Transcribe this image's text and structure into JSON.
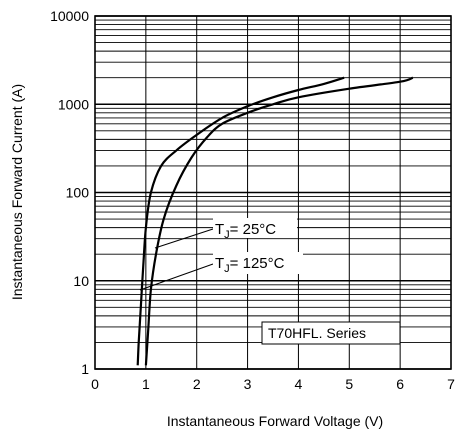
{
  "chart_data": {
    "type": "line",
    "title": "",
    "xlabel": "Instantaneous Forward Voltage (V)",
    "ylabel": "Instantaneous Forward Current (A)",
    "x_scale": "linear",
    "y_scale": "log",
    "xlim": [
      0,
      7
    ],
    "ylim": [
      1,
      10000
    ],
    "x_ticks": [
      "0",
      "1",
      "2",
      "3",
      "4",
      "5",
      "6",
      "7"
    ],
    "y_ticks": [
      "1",
      "10",
      "100",
      "1000",
      "10000"
    ],
    "grid": true,
    "series": [
      {
        "name": "TJ = 25°C",
        "points": [
          [
            0.84,
            1.1
          ],
          [
            0.86,
            2
          ],
          [
            0.9,
            5
          ],
          [
            0.95,
            15
          ],
          [
            1.0,
            40
          ],
          [
            1.1,
            100
          ],
          [
            1.3,
            200
          ],
          [
            1.6,
            300
          ],
          [
            2.0,
            450
          ],
          [
            2.5,
            700
          ],
          [
            3.0,
            950
          ],
          [
            3.5,
            1200
          ],
          [
            4.0,
            1450
          ],
          [
            4.5,
            1700
          ],
          [
            4.9,
            2000
          ]
        ]
      },
      {
        "name": "TJ = 125°C",
        "points": [
          [
            1.0,
            1.1
          ],
          [
            1.05,
            3
          ],
          [
            1.1,
            8
          ],
          [
            1.2,
            20
          ],
          [
            1.35,
            50
          ],
          [
            1.6,
            120
          ],
          [
            1.9,
            250
          ],
          [
            2.2,
            420
          ],
          [
            2.5,
            600
          ],
          [
            3.0,
            800
          ],
          [
            3.5,
            1000
          ],
          [
            4.0,
            1200
          ],
          [
            5.0,
            1500
          ],
          [
            6.0,
            1800
          ],
          [
            6.25,
            2000
          ]
        ]
      }
    ],
    "annotations": {
      "tj25": {
        "prefix": "T",
        "sub": "J",
        "suffix": "= 25°C"
      },
      "tj125": {
        "prefix": "T",
        "sub": "J",
        "suffix": "= 125°C"
      },
      "series_label": "T70HFL. Series"
    }
  }
}
